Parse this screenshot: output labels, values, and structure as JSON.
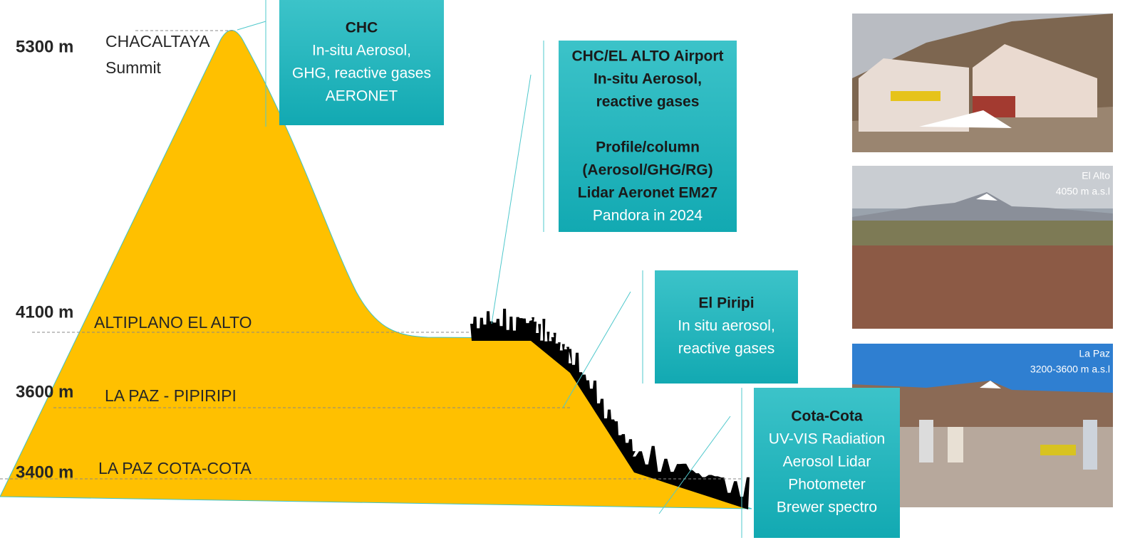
{
  "altitudes": [
    {
      "height": "5300 m",
      "site": [
        "CHACALTAYA",
        "Summit"
      ]
    },
    {
      "height": "4100 m",
      "site": [
        "ALTIPLANO EL ALTO"
      ]
    },
    {
      "height": "3600 m",
      "site": [
        "LA PAZ - PIPIRIPI"
      ]
    },
    {
      "height": "3400 m",
      "site": [
        "LA PAZ COTA-COTA"
      ]
    }
  ],
  "boxes": [
    {
      "paragraphs": [
        [
          {
            "text": "CHC",
            "bold": true
          },
          {
            "text": "In-situ Aerosol,"
          },
          {
            "text": "GHG, reactive gases"
          },
          {
            "text": "AERONET"
          }
        ]
      ]
    },
    {
      "paragraphs": [
        [
          {
            "text": "CHC/EL ALTO Airport",
            "bold": true
          },
          {
            "text": "In-situ Aerosol,",
            "bold": true
          },
          {
            "text": "reactive gases",
            "bold": true
          }
        ],
        [
          {
            "text": "Profile/column",
            "bold": true
          },
          {
            "text": "(Aerosol/GHG/RG)",
            "bold": true
          },
          {
            "text": "Lidar Aeronet EM27",
            "bold": true
          },
          {
            "text": "Pandora in 2024"
          }
        ]
      ]
    },
    {
      "paragraphs": [
        [
          {
            "text": "El Piripi",
            "bold": true
          },
          {
            "text": "In situ aerosol,"
          },
          {
            "text": "reactive gases"
          }
        ]
      ]
    },
    {
      "paragraphs": [
        [
          {
            "text": "Cota-Cota",
            "bold": true
          },
          {
            "text": "UV-VIS Radiation"
          },
          {
            "text": "Aerosol Lidar"
          },
          {
            "text": "Photometer"
          },
          {
            "text": "Brewer spectro"
          }
        ]
      ]
    }
  ],
  "photos": [
    {
      "caption": []
    },
    {
      "caption": [
        "El Alto",
        "4050 m a.s.l"
      ]
    },
    {
      "caption": [
        "La Paz",
        "3200-3600 m a.s.l"
      ]
    }
  ]
}
